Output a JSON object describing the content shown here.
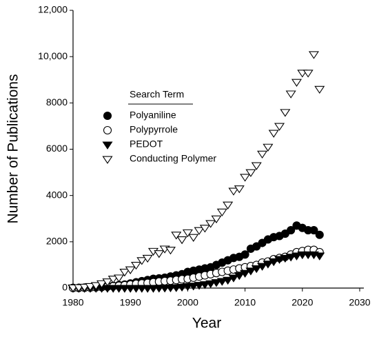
{
  "chart_data": {
    "type": "scatter",
    "x_label": "Year",
    "y_label": "Number of Publications",
    "legend_title": "Search Term",
    "x": [
      1980,
      1981,
      1982,
      1983,
      1984,
      1985,
      1986,
      1987,
      1988,
      1989,
      1990,
      1991,
      1992,
      1993,
      1994,
      1995,
      1996,
      1997,
      1998,
      1999,
      2000,
      2001,
      2002,
      2003,
      2004,
      2005,
      2006,
      2007,
      2008,
      2009,
      2010,
      2011,
      2012,
      2013,
      2014,
      2015,
      2016,
      2017,
      2018,
      2019,
      2020,
      2021,
      2022,
      2023
    ],
    "series": [
      {
        "name": "Polyaniline",
        "color": "#000000",
        "marker": "circle",
        "filled": true,
        "values": [
          10,
          10,
          20,
          30,
          40,
          60,
          80,
          100,
          130,
          150,
          200,
          250,
          300,
          350,
          400,
          420,
          450,
          500,
          550,
          600,
          700,
          750,
          800,
          850,
          900,
          1000,
          1100,
          1200,
          1300,
          1350,
          1450,
          1700,
          1800,
          1950,
          2100,
          2200,
          2250,
          2350,
          2500,
          2700,
          2600,
          2500,
          2500,
          2300
        ]
      },
      {
        "name": "Polypyrrole",
        "color": "#000000",
        "marker": "circle",
        "filled": false,
        "values": [
          5,
          10,
          15,
          20,
          30,
          40,
          60,
          80,
          100,
          120,
          150,
          180,
          200,
          220,
          250,
          280,
          300,
          320,
          350,
          380,
          400,
          450,
          500,
          550,
          600,
          650,
          700,
          750,
          800,
          850,
          900,
          950,
          1000,
          1100,
          1150,
          1250,
          1300,
          1350,
          1450,
          1550,
          1600,
          1650,
          1650,
          1550
        ]
      },
      {
        "name": "PEDOT",
        "color": "#000000",
        "marker": "triangle-down",
        "filled": true,
        "values": [
          0,
          0,
          0,
          0,
          0,
          0,
          0,
          0,
          0,
          0,
          0,
          0,
          0,
          0,
          0,
          5,
          10,
          20,
          30,
          50,
          80,
          100,
          130,
          160,
          200,
          250,
          300,
          350,
          450,
          550,
          650,
          750,
          850,
          950,
          1050,
          1150,
          1250,
          1300,
          1350,
          1400,
          1450,
          1450,
          1450,
          1400
        ]
      },
      {
        "name": "Conducting Polymer",
        "color": "#000000",
        "marker": "triangle-down",
        "filled": false,
        "values": [
          20,
          30,
          50,
          80,
          120,
          200,
          280,
          400,
          450,
          700,
          800,
          1000,
          1200,
          1300,
          1600,
          1500,
          1700,
          1650,
          2300,
          2100,
          2400,
          2200,
          2500,
          2600,
          2800,
          3000,
          3300,
          3600,
          4200,
          4300,
          4800,
          5000,
          5300,
          5800,
          6100,
          6700,
          7000,
          7600,
          8400,
          8900,
          9300,
          9300,
          10100,
          8600
        ]
      }
    ],
    "xlim": [
      1980,
      2030
    ],
    "xticks": [
      1980,
      1990,
      2000,
      2010,
      2020,
      2030
    ],
    "ylim": [
      0,
      12000
    ],
    "yticks": [
      0,
      2000,
      4000,
      6000,
      8000,
      {
        "value": 10000,
        "label": "10,000"
      },
      {
        "value": 12000,
        "label": "12,000"
      }
    ],
    "grid": false
  }
}
